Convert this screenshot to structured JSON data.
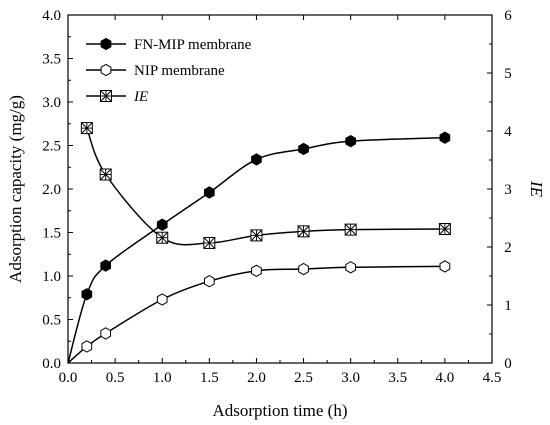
{
  "chart_data": {
    "type": "line",
    "x": [
      0,
      0.2,
      0.4,
      1.0,
      1.5,
      2.0,
      2.5,
      3.0,
      4.0
    ],
    "xlabel": "Adsorption time (h)",
    "ylabel": "Adsorption capacity (mg/g)",
    "y2label": "IE",
    "xlim": [
      0.0,
      4.5
    ],
    "ylim": [
      0.0,
      4.0
    ],
    "y2lim": [
      0,
      6
    ],
    "xticks": [
      "0.0",
      "0.5",
      "1.0",
      "1.5",
      "2.0",
      "2.5",
      "3.0",
      "3.5",
      "4.0",
      "4.5"
    ],
    "yticks": [
      "0.0",
      "0.5",
      "1.0",
      "1.5",
      "2.0",
      "2.5",
      "3.0",
      "3.5",
      "4.0"
    ],
    "y2ticks": [
      "0",
      "1",
      "2",
      "3",
      "4",
      "5",
      "6"
    ],
    "grid": false,
    "legend_position": "top-left",
    "series": [
      {
        "name": "FN-MIP membrane",
        "axis": "left",
        "marker": "filled-hexagon",
        "x": [
          0.2,
          0.4,
          1.0,
          1.5,
          2.0,
          2.5,
          3.0,
          4.0
        ],
        "values": [
          0.79,
          1.12,
          1.59,
          1.96,
          2.34,
          2.46,
          2.55,
          2.59
        ],
        "curve_start": [
          0,
          0
        ]
      },
      {
        "name": "NIP membrane",
        "axis": "left",
        "marker": "open-hexagon",
        "x": [
          0.2,
          0.4,
          1.0,
          1.5,
          2.0,
          2.5,
          3.0,
          4.0
        ],
        "values": [
          0.19,
          0.34,
          0.73,
          0.94,
          1.06,
          1.08,
          1.1,
          1.11
        ],
        "curve_start": [
          0,
          0
        ]
      },
      {
        "name": "IE",
        "axis": "right",
        "marker": "crossed-square",
        "x": [
          0.2,
          0.4,
          1.0,
          1.5,
          2.0,
          2.5,
          3.0,
          4.0
        ],
        "values": [
          4.05,
          3.25,
          2.16,
          2.07,
          2.2,
          2.27,
          2.3,
          2.31
        ]
      }
    ]
  }
}
